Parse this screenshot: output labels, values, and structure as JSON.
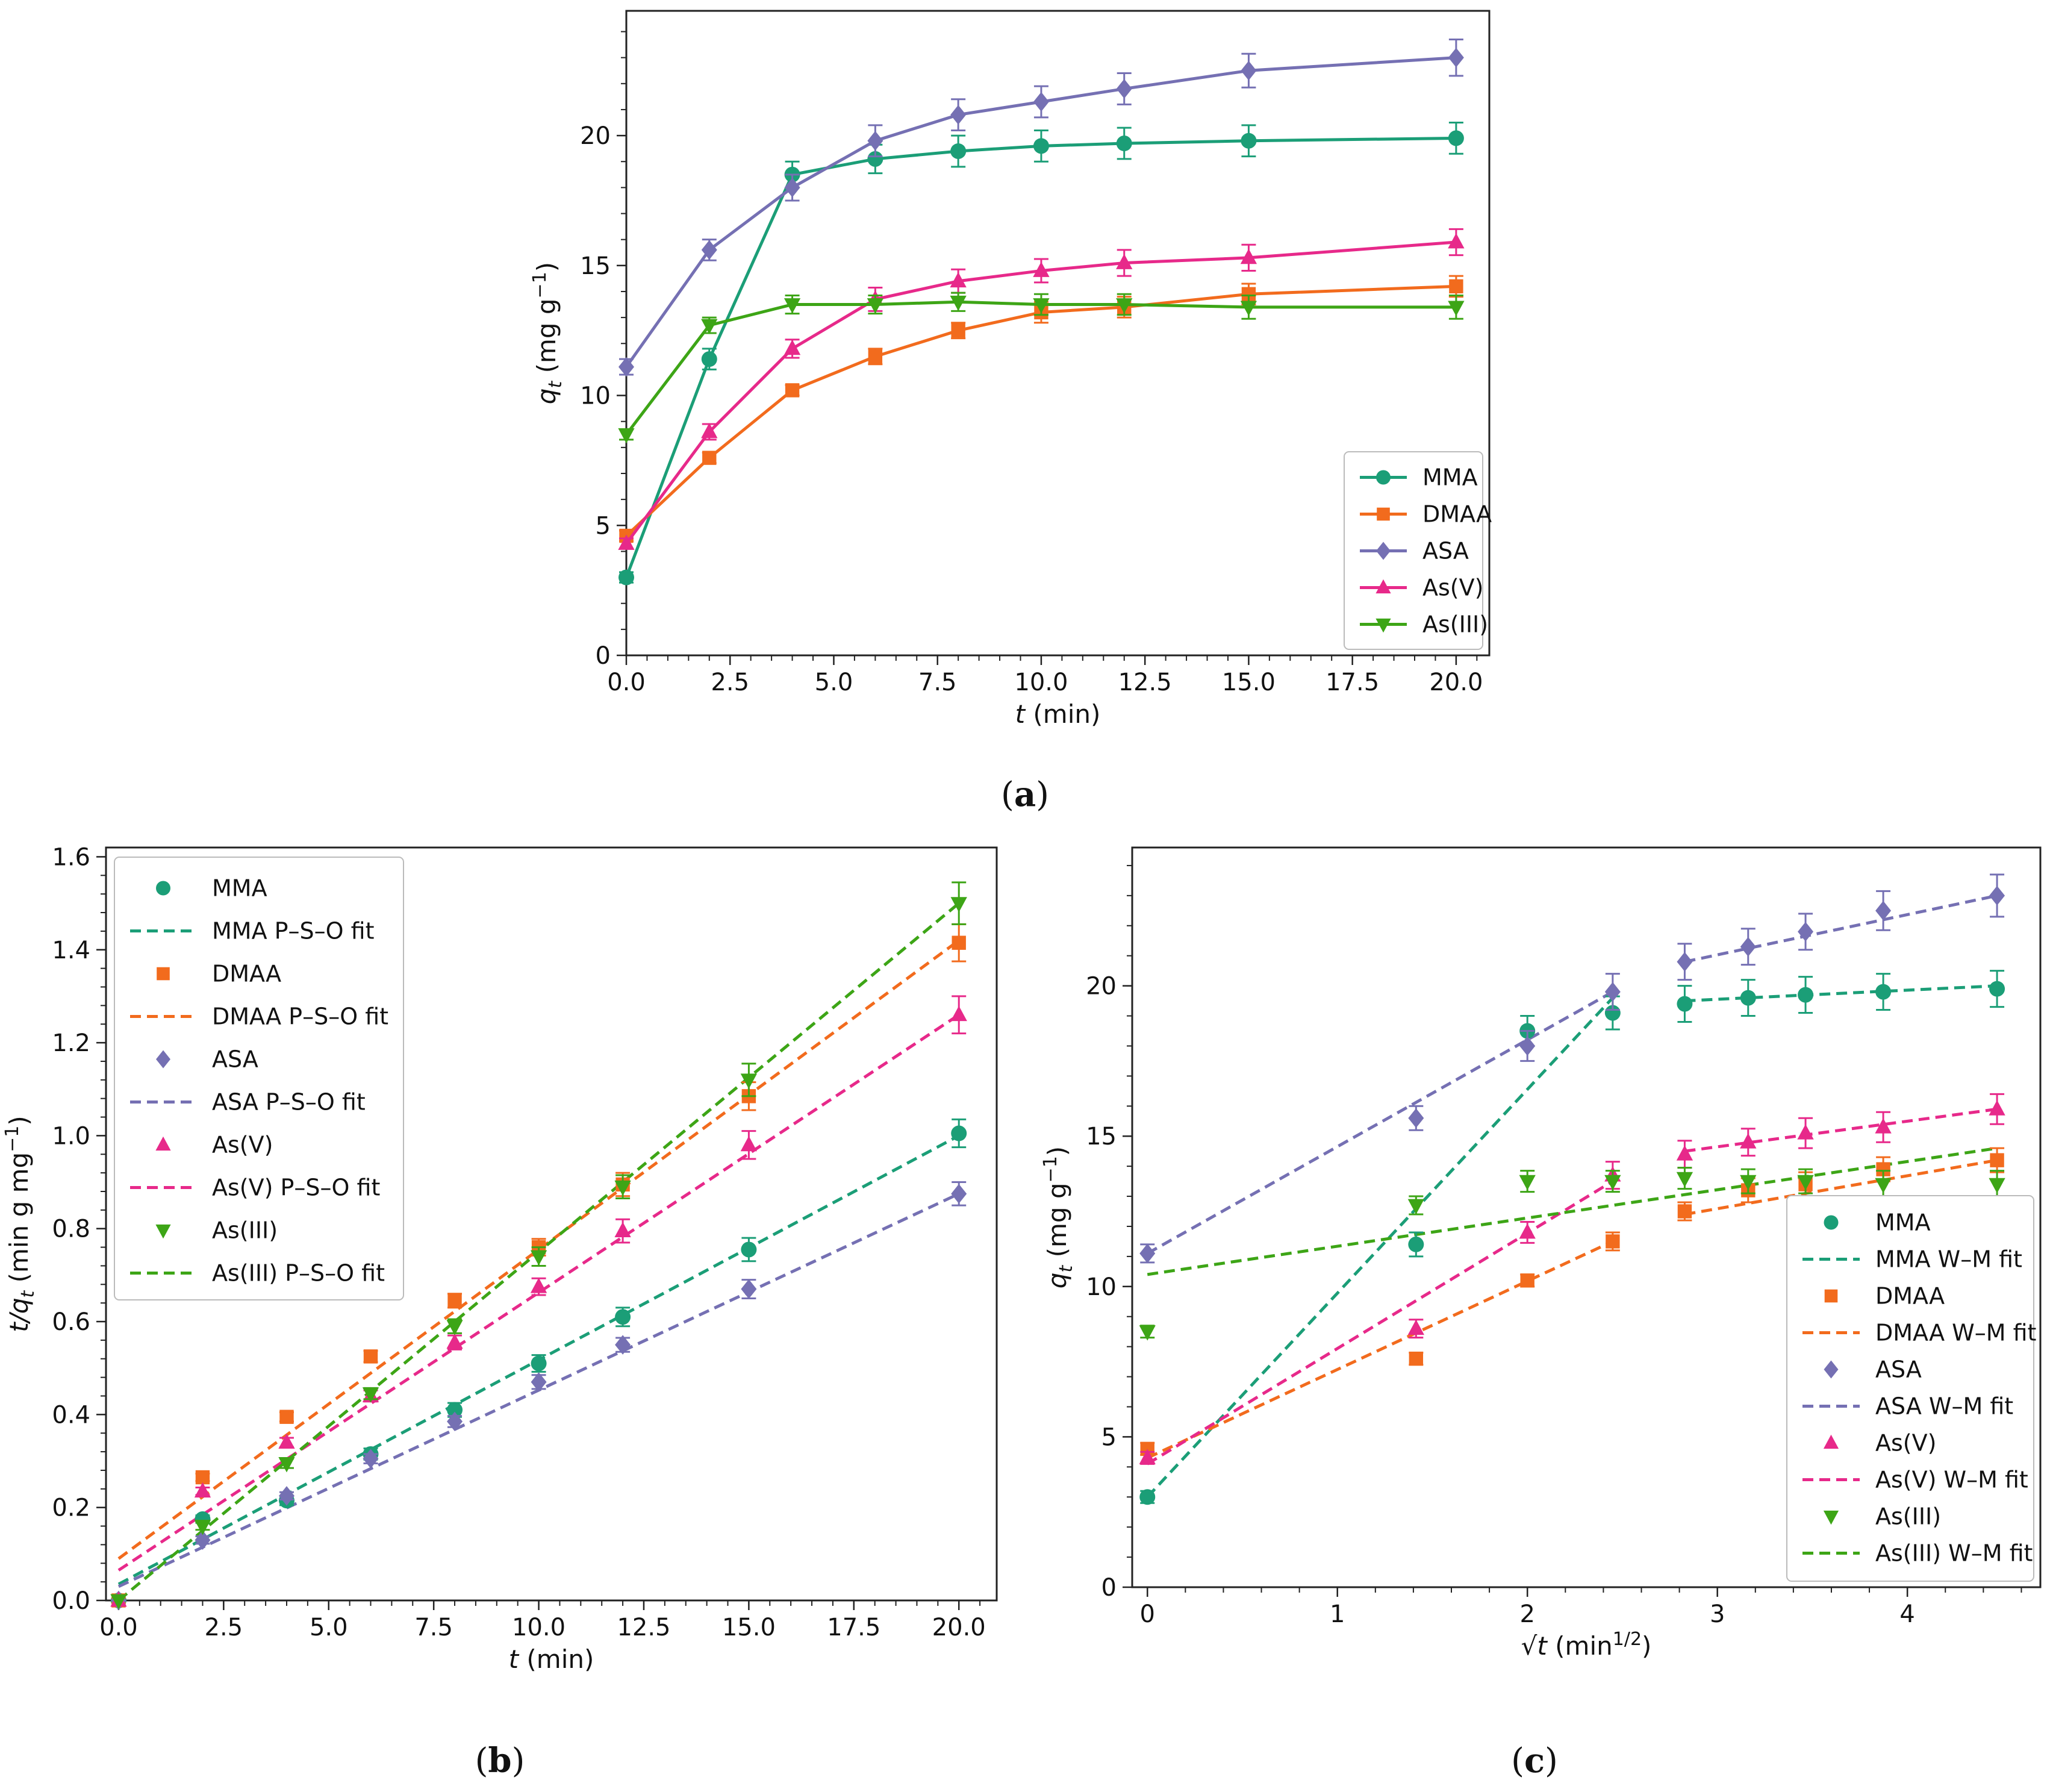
{
  "colors": {
    "MMA": "#1b9e77",
    "DMAA": "#f26b1d",
    "ASA": "#7570b3",
    "As(V)": "#e7298a",
    "As(III)": "#3da516"
  },
  "chart_data": [
    {
      "panel": "a",
      "type": "line",
      "xlabel_var": "t",
      "xlabel_unit": " (min)",
      "ylabel_var": "q",
      "ylabel_sub": "t",
      "ylabel_unit": " (mg g",
      "ylabel_sup": "−1",
      "ylabel_close": ")",
      "xlim": [
        0,
        20.8
      ],
      "ylim": [
        0,
        24.8
      ],
      "xticks": [
        0,
        2.5,
        5,
        7.5,
        10,
        12.5,
        15,
        17.5,
        20
      ],
      "xtick_labels": [
        "0.0",
        "2.5",
        "5.0",
        "7.5",
        "10.0",
        "12.5",
        "15.0",
        "17.5",
        "20.0"
      ],
      "yticks": [
        0,
        5,
        10,
        15,
        20
      ],
      "ytick_labels": [
        "0",
        "5",
        "10",
        "15",
        "20"
      ],
      "legend_position": "lower right",
      "x": [
        0,
        2,
        4,
        6,
        8,
        10,
        12,
        15,
        20
      ],
      "series": [
        {
          "name": "MMA",
          "marker": "circle",
          "values": [
            3.0,
            11.4,
            18.5,
            19.1,
            19.4,
            19.6,
            19.7,
            19.8,
            19.9
          ],
          "err": [
            0.2,
            0.4,
            0.5,
            0.55,
            0.6,
            0.6,
            0.6,
            0.6,
            0.6
          ]
        },
        {
          "name": "DMAA",
          "marker": "square",
          "values": [
            4.6,
            7.6,
            10.2,
            11.5,
            12.5,
            13.2,
            13.4,
            13.9,
            14.2
          ],
          "err": [
            0.2,
            0.2,
            0.2,
            0.3,
            0.3,
            0.4,
            0.4,
            0.4,
            0.4
          ]
        },
        {
          "name": "ASA",
          "marker": "diamond",
          "values": [
            11.1,
            15.6,
            18.0,
            19.8,
            20.8,
            21.3,
            21.8,
            22.5,
            23.0
          ],
          "err": [
            0.3,
            0.4,
            0.5,
            0.6,
            0.6,
            0.6,
            0.6,
            0.65,
            0.7
          ]
        },
        {
          "name": "As(V)",
          "marker": "triangle-up",
          "values": [
            4.3,
            8.6,
            11.8,
            13.7,
            14.4,
            14.8,
            15.1,
            15.3,
            15.9
          ],
          "err": [
            0.2,
            0.3,
            0.35,
            0.45,
            0.45,
            0.45,
            0.5,
            0.5,
            0.5
          ]
        },
        {
          "name": "As(III)",
          "marker": "triangle-down",
          "values": [
            8.5,
            12.7,
            13.5,
            13.5,
            13.6,
            13.5,
            13.5,
            13.4,
            13.4
          ],
          "err": [
            0.2,
            0.3,
            0.35,
            0.35,
            0.35,
            0.4,
            0.4,
            0.45,
            0.45
          ]
        }
      ]
    },
    {
      "panel": "b",
      "type": "scatter",
      "xlabel_var": "t",
      "xlabel_unit": " (min)",
      "ylabel_var": "t/q",
      "ylabel_sub": "t",
      "ylabel_unit": " (min g mg",
      "ylabel_sup": "−1",
      "ylabel_close": ")",
      "xlim": [
        -0.3,
        20.9
      ],
      "ylim": [
        0,
        1.62
      ],
      "xticks": [
        0,
        2.5,
        5,
        7.5,
        10,
        12.5,
        15,
        17.5,
        20
      ],
      "xtick_labels": [
        "0.0",
        "2.5",
        "5.0",
        "7.5",
        "10.0",
        "12.5",
        "15.0",
        "17.5",
        "20.0"
      ],
      "yticks": [
        0,
        0.2,
        0.4,
        0.6,
        0.8,
        1.0,
        1.2,
        1.4,
        1.6
      ],
      "ytick_labels": [
        "0.0",
        "0.2",
        "0.4",
        "0.6",
        "0.8",
        "1.0",
        "1.2",
        "1.4",
        "1.6"
      ],
      "legend_position": "upper left",
      "x": [
        0,
        2,
        4,
        6,
        8,
        10,
        12,
        15,
        20
      ],
      "series": [
        {
          "name": "MMA",
          "fit_name": "MMA P–S–O fit",
          "marker": "circle",
          "values": [
            0.0,
            0.175,
            0.215,
            0.315,
            0.41,
            0.51,
            0.61,
            0.755,
            1.005
          ],
          "err": [
            0,
            0.008,
            0.01,
            0.012,
            0.015,
            0.018,
            0.02,
            0.025,
            0.03
          ],
          "fit": [
            0.035,
            1.0
          ]
        },
        {
          "name": "DMAA",
          "fit_name": "DMAA P–S–O fit",
          "marker": "square",
          "values": [
            0.0,
            0.265,
            0.395,
            0.525,
            0.645,
            0.76,
            0.895,
            1.085,
            1.415
          ],
          "err": [
            0,
            0.008,
            0.01,
            0.012,
            0.015,
            0.018,
            0.025,
            0.03,
            0.04
          ],
          "fit": [
            0.09,
            1.42
          ]
        },
        {
          "name": "ASA",
          "fit_name": "ASA P–S–O fit",
          "marker": "diamond",
          "values": [
            0.0,
            0.13,
            0.225,
            0.305,
            0.385,
            0.47,
            0.55,
            0.67,
            0.875
          ],
          "err": [
            0,
            0.008,
            0.008,
            0.01,
            0.012,
            0.015,
            0.015,
            0.02,
            0.025
          ],
          "fit": [
            0.03,
            0.875
          ]
        },
        {
          "name": "As(V)",
          "fit_name": "As(V) P–S–O fit",
          "marker": "triangle-up",
          "values": [
            0.0,
            0.235,
            0.34,
            0.44,
            0.555,
            0.675,
            0.795,
            0.98,
            1.26
          ],
          "err": [
            0,
            0.008,
            0.01,
            0.012,
            0.015,
            0.018,
            0.025,
            0.03,
            0.04
          ],
          "fit": [
            0.065,
            1.26
          ]
        },
        {
          "name": "As(III)",
          "fit_name": "As(III) P–S–O fit",
          "marker": "triangle-down",
          "values": [
            0.0,
            0.16,
            0.295,
            0.445,
            0.59,
            0.74,
            0.89,
            1.12,
            1.5
          ],
          "err": [
            0,
            0.008,
            0.01,
            0.012,
            0.015,
            0.02,
            0.025,
            0.035,
            0.045
          ],
          "fit": [
            0.0,
            1.5
          ]
        }
      ]
    },
    {
      "panel": "c",
      "type": "scatter",
      "xlabel_var": "t",
      "xlabel_unit": " (min",
      "xlabel_sup": "1/2",
      "xlabel_close": ")",
      "ylabel_var": "q",
      "ylabel_sub": "t",
      "ylabel_unit": " (mg g",
      "ylabel_sup": "−1",
      "ylabel_close": ")",
      "xlim": [
        -0.08,
        4.7
      ],
      "ylim": [
        0,
        24.6
      ],
      "xticks": [
        0,
        1,
        2,
        3,
        4
      ],
      "xtick_labels": [
        "0",
        "1",
        "2",
        "3",
        "4"
      ],
      "yticks": [
        0,
        5,
        10,
        15,
        20
      ],
      "ytick_labels": [
        "0",
        "5",
        "10",
        "15",
        "20"
      ],
      "legend_position": "lower right",
      "x": [
        0,
        1.414,
        2.0,
        2.449,
        2.828,
        3.162,
        3.464,
        3.873,
        4.472
      ],
      "series": [
        {
          "name": "MMA",
          "fit_name": "MMA W–M fit",
          "marker": "circle",
          "values": [
            3.0,
            11.4,
            18.5,
            19.1,
            19.4,
            19.6,
            19.7,
            19.8,
            19.9
          ],
          "err": [
            0.2,
            0.4,
            0.5,
            0.55,
            0.6,
            0.6,
            0.6,
            0.6,
            0.6
          ],
          "fits": [
            [
              [
                0,
                3.0
              ],
              [
                2.449,
                19.6
              ]
            ],
            [
              [
                2.828,
                19.5
              ],
              [
                4.472,
                20.0
              ]
            ]
          ]
        },
        {
          "name": "DMAA",
          "fit_name": "DMAA W–M fit",
          "marker": "square",
          "values": [
            4.6,
            7.6,
            10.2,
            11.5,
            12.5,
            13.2,
            13.4,
            13.9,
            14.2
          ],
          "err": [
            0.2,
            0.2,
            0.2,
            0.3,
            0.3,
            0.4,
            0.4,
            0.4,
            0.4
          ],
          "fits": [
            [
              [
                0,
                4.3
              ],
              [
                2.449,
                11.5
              ]
            ],
            [
              [
                2.828,
                12.4
              ],
              [
                4.472,
                14.2
              ]
            ]
          ]
        },
        {
          "name": "ASA",
          "fit_name": "ASA W–M fit",
          "marker": "diamond",
          "values": [
            11.1,
            15.6,
            18.0,
            19.8,
            20.8,
            21.3,
            21.8,
            22.5,
            23.0
          ],
          "err": [
            0.3,
            0.4,
            0.5,
            0.6,
            0.6,
            0.6,
            0.6,
            0.65,
            0.7
          ],
          "fits": [
            [
              [
                0,
                11.1
              ],
              [
                2.449,
                19.8
              ]
            ],
            [
              [
                2.828,
                20.8
              ],
              [
                4.472,
                23.0
              ]
            ]
          ]
        },
        {
          "name": "As(V)",
          "fit_name": "As(V) W–M fit",
          "marker": "triangle-up",
          "values": [
            4.3,
            8.6,
            11.8,
            13.7,
            14.4,
            14.8,
            15.1,
            15.3,
            15.9
          ],
          "err": [
            0.2,
            0.3,
            0.35,
            0.45,
            0.45,
            0.45,
            0.5,
            0.5,
            0.5
          ],
          "fits": [
            [
              [
                0,
                4.1
              ],
              [
                2.449,
                13.5
              ]
            ],
            [
              [
                2.828,
                14.5
              ],
              [
                4.472,
                15.9
              ]
            ]
          ]
        },
        {
          "name": "As(III)",
          "fit_name": "As(III) W–M fit",
          "marker": "triangle-down",
          "values": [
            8.5,
            12.7,
            13.5,
            13.5,
            13.6,
            13.5,
            13.5,
            13.4,
            13.4
          ],
          "err": [
            0.2,
            0.3,
            0.35,
            0.35,
            0.35,
            0.4,
            0.4,
            0.45,
            0.45
          ],
          "fits": [
            [
              [
                0,
                10.4
              ],
              [
                4.472,
                14.6
              ]
            ]
          ]
        }
      ]
    }
  ],
  "panel_labels": {
    "a": {
      "open": "(",
      "letter": "a",
      "close": ")"
    },
    "b": {
      "open": "(",
      "letter": "b",
      "close": ")"
    },
    "c": {
      "open": "(",
      "letter": "c",
      "close": ")"
    }
  }
}
